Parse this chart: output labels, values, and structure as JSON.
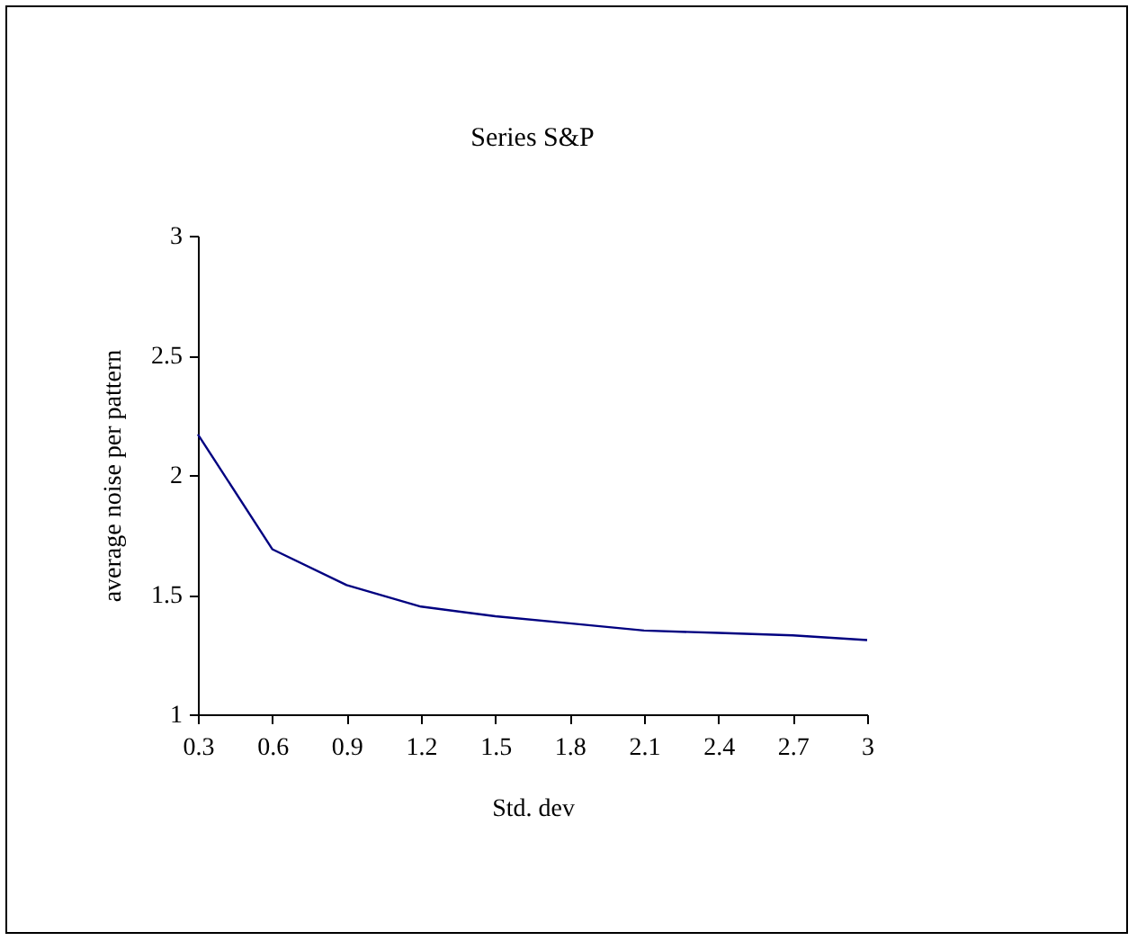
{
  "chart_data": {
    "type": "line",
    "title": "Series S&P",
    "xlabel": "Std. dev",
    "ylabel": "average noise per pattern",
    "x": [
      0.3,
      0.6,
      0.9,
      1.2,
      1.5,
      1.8,
      2.1,
      2.4,
      2.7,
      3
    ],
    "series": [
      {
        "color": "#000080",
        "values": [
          2.17,
          1.69,
          1.54,
          1.45,
          1.41,
          1.38,
          1.35,
          1.34,
          1.33,
          1.31
        ]
      }
    ],
    "xlim": [
      0.3,
      3
    ],
    "xticks": [
      0.3,
      0.6,
      0.9,
      1.2,
      1.5,
      1.8,
      2.1,
      2.4,
      2.7,
      3
    ],
    "ylim": [
      1,
      3
    ],
    "yticks": [
      1,
      1.5,
      2,
      2.5,
      3
    ],
    "grid": false,
    "legend": false,
    "marker": "none",
    "line_style": "solid"
  }
}
